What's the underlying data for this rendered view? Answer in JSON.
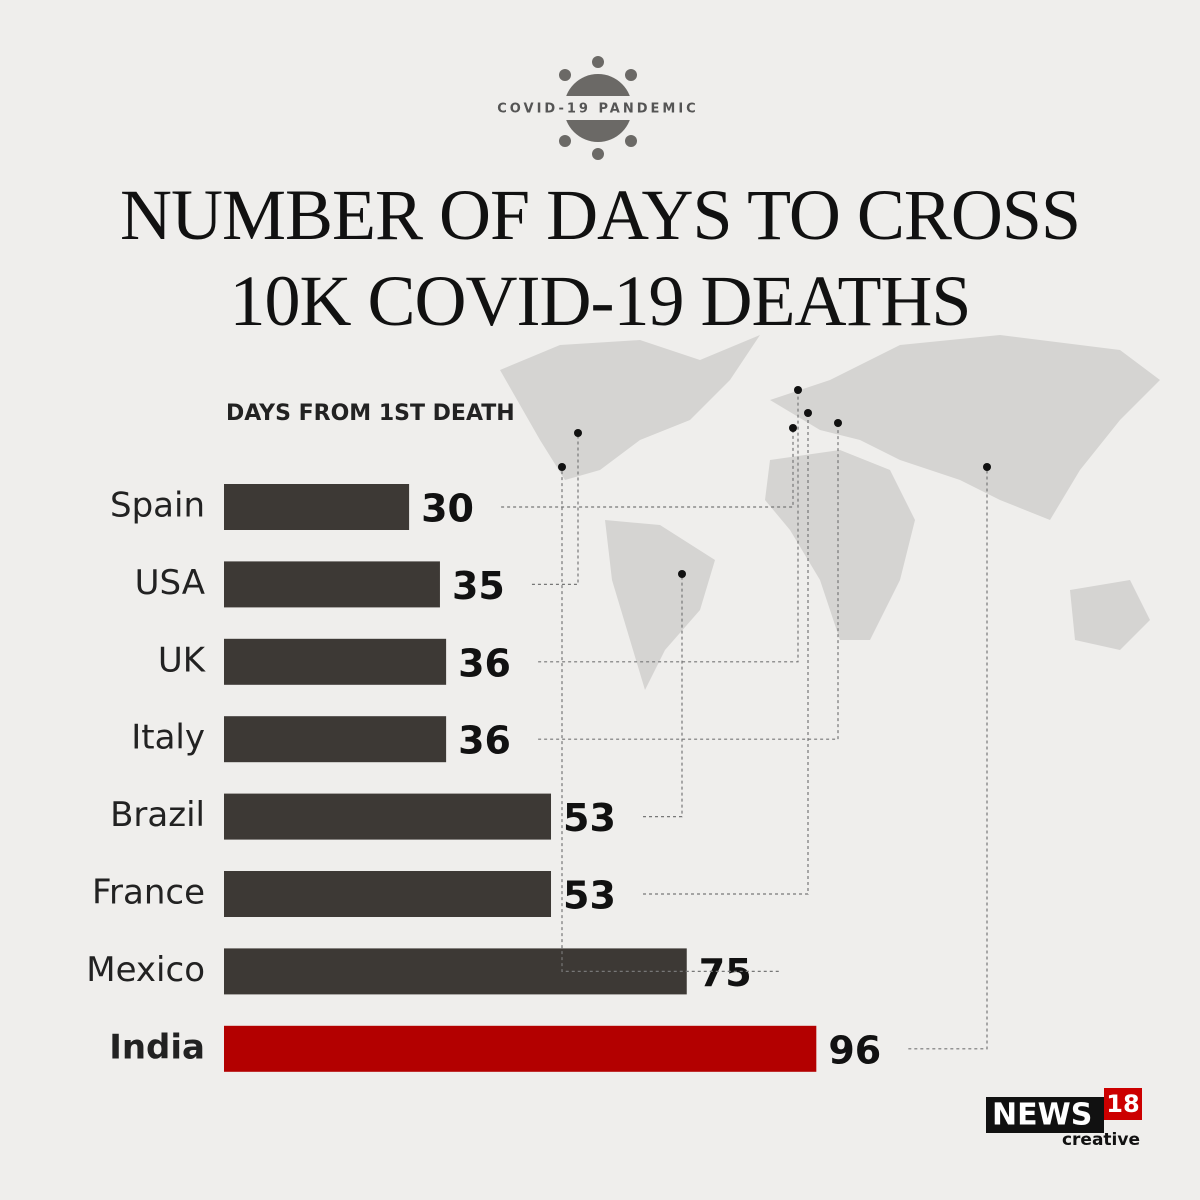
{
  "chart_data": {
    "type": "bar",
    "orientation": "horizontal",
    "kicker": "COVID-19 PANDEMIC",
    "title": "NUMBER OF DAYS TO CROSS 10K COVID-19 DEATHS",
    "subtitle": "DAYS FROM 1ST DEATH",
    "categories": [
      "Spain",
      "USA",
      "UK",
      "Italy",
      "Brazil",
      "France",
      "Mexico",
      "India"
    ],
    "values": [
      30,
      35,
      36,
      36,
      53,
      53,
      75,
      96
    ],
    "colors": [
      "#3d3935",
      "#3d3935",
      "#3d3935",
      "#3d3935",
      "#3d3935",
      "#3d3935",
      "#3d3935",
      "#b30000"
    ],
    "highlight": "India"
  },
  "brand": {
    "name": "NEWS",
    "number": "18",
    "tagline": "creative"
  }
}
